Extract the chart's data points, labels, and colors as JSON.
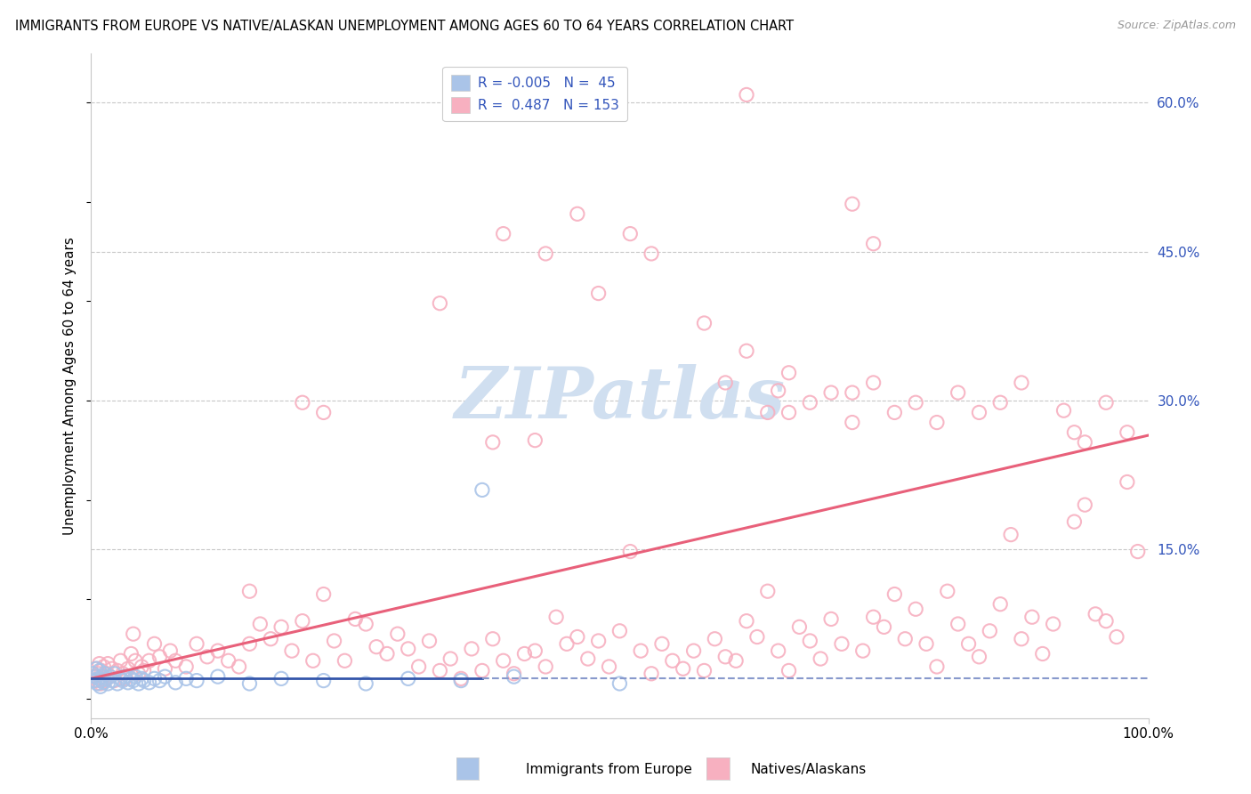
{
  "title": "IMMIGRANTS FROM EUROPE VS NATIVE/ALASKAN UNEMPLOYMENT AMONG AGES 60 TO 64 YEARS CORRELATION CHART",
  "source": "Source: ZipAtlas.com",
  "ylabel": "Unemployment Among Ages 60 to 64 years",
  "xlim": [
    0.0,
    1.0
  ],
  "ylim": [
    -0.02,
    0.65
  ],
  "xtick_labels": [
    "0.0%",
    "100.0%"
  ],
  "ytick_labels": [
    "15.0%",
    "30.0%",
    "45.0%",
    "60.0%"
  ],
  "ytick_values": [
    0.15,
    0.3,
    0.45,
    0.6
  ],
  "color_blue": "#aac4e8",
  "color_pink": "#f7b0c0",
  "line_color_blue_solid": "#3355aa",
  "line_color_blue_dashed": "#8899cc",
  "line_color_pink": "#e8607a",
  "text_color": "#3355bb",
  "watermark_color": "#d0dff0",
  "background_color": "#ffffff",
  "grid_color": "#c8c8c8",
  "blue_scatter": [
    [
      0.002,
      0.025
    ],
    [
      0.003,
      0.018
    ],
    [
      0.004,
      0.022
    ],
    [
      0.005,
      0.03
    ],
    [
      0.006,
      0.015
    ],
    [
      0.007,
      0.02
    ],
    [
      0.008,
      0.028
    ],
    [
      0.009,
      0.012
    ],
    [
      0.01,
      0.018
    ],
    [
      0.011,
      0.022
    ],
    [
      0.012,
      0.016
    ],
    [
      0.013,
      0.025
    ],
    [
      0.015,
      0.02
    ],
    [
      0.016,
      0.015
    ],
    [
      0.018,
      0.022
    ],
    [
      0.02,
      0.018
    ],
    [
      0.022,
      0.025
    ],
    [
      0.025,
      0.015
    ],
    [
      0.028,
      0.02
    ],
    [
      0.03,
      0.018
    ],
    [
      0.032,
      0.022
    ],
    [
      0.035,
      0.016
    ],
    [
      0.038,
      0.02
    ],
    [
      0.04,
      0.018
    ],
    [
      0.042,
      0.022
    ],
    [
      0.045,
      0.015
    ],
    [
      0.048,
      0.02
    ],
    [
      0.05,
      0.018
    ],
    [
      0.055,
      0.016
    ],
    [
      0.06,
      0.02
    ],
    [
      0.065,
      0.018
    ],
    [
      0.07,
      0.022
    ],
    [
      0.08,
      0.016
    ],
    [
      0.09,
      0.02
    ],
    [
      0.1,
      0.018
    ],
    [
      0.12,
      0.022
    ],
    [
      0.15,
      0.015
    ],
    [
      0.18,
      0.02
    ],
    [
      0.22,
      0.018
    ],
    [
      0.26,
      0.015
    ],
    [
      0.3,
      0.02
    ],
    [
      0.35,
      0.018
    ],
    [
      0.37,
      0.21
    ],
    [
      0.4,
      0.022
    ],
    [
      0.5,
      0.015
    ]
  ],
  "pink_scatter": [
    [
      0.003,
      0.022
    ],
    [
      0.005,
      0.03
    ],
    [
      0.006,
      0.018
    ],
    [
      0.007,
      0.025
    ],
    [
      0.008,
      0.035
    ],
    [
      0.009,
      0.015
    ],
    [
      0.01,
      0.028
    ],
    [
      0.011,
      0.02
    ],
    [
      0.012,
      0.032
    ],
    [
      0.013,
      0.018
    ],
    [
      0.015,
      0.025
    ],
    [
      0.016,
      0.035
    ],
    [
      0.018,
      0.022
    ],
    [
      0.02,
      0.03
    ],
    [
      0.022,
      0.018
    ],
    [
      0.025,
      0.028
    ],
    [
      0.028,
      0.038
    ],
    [
      0.03,
      0.025
    ],
    [
      0.032,
      0.02
    ],
    [
      0.035,
      0.03
    ],
    [
      0.038,
      0.045
    ],
    [
      0.04,
      0.065
    ],
    [
      0.042,
      0.038
    ],
    [
      0.045,
      0.025
    ],
    [
      0.048,
      0.032
    ],
    [
      0.05,
      0.028
    ],
    [
      0.055,
      0.038
    ],
    [
      0.06,
      0.055
    ],
    [
      0.065,
      0.042
    ],
    [
      0.07,
      0.03
    ],
    [
      0.075,
      0.048
    ],
    [
      0.08,
      0.038
    ],
    [
      0.09,
      0.032
    ],
    [
      0.1,
      0.055
    ],
    [
      0.11,
      0.042
    ],
    [
      0.12,
      0.048
    ],
    [
      0.13,
      0.038
    ],
    [
      0.14,
      0.032
    ],
    [
      0.15,
      0.055
    ],
    [
      0.16,
      0.075
    ],
    [
      0.17,
      0.06
    ],
    [
      0.18,
      0.072
    ],
    [
      0.19,
      0.048
    ],
    [
      0.2,
      0.078
    ],
    [
      0.21,
      0.038
    ],
    [
      0.22,
      0.105
    ],
    [
      0.23,
      0.058
    ],
    [
      0.24,
      0.038
    ],
    [
      0.25,
      0.08
    ],
    [
      0.26,
      0.075
    ],
    [
      0.27,
      0.052
    ],
    [
      0.28,
      0.045
    ],
    [
      0.29,
      0.065
    ],
    [
      0.3,
      0.05
    ],
    [
      0.31,
      0.032
    ],
    [
      0.32,
      0.058
    ],
    [
      0.33,
      0.028
    ],
    [
      0.34,
      0.04
    ],
    [
      0.35,
      0.02
    ],
    [
      0.36,
      0.05
    ],
    [
      0.37,
      0.028
    ],
    [
      0.38,
      0.06
    ],
    [
      0.39,
      0.038
    ],
    [
      0.4,
      0.025
    ],
    [
      0.41,
      0.045
    ],
    [
      0.42,
      0.048
    ],
    [
      0.43,
      0.032
    ],
    [
      0.44,
      0.082
    ],
    [
      0.45,
      0.055
    ],
    [
      0.46,
      0.062
    ],
    [
      0.47,
      0.04
    ],
    [
      0.48,
      0.058
    ],
    [
      0.49,
      0.032
    ],
    [
      0.5,
      0.068
    ],
    [
      0.51,
      0.148
    ],
    [
      0.52,
      0.048
    ],
    [
      0.53,
      0.025
    ],
    [
      0.54,
      0.055
    ],
    [
      0.55,
      0.038
    ],
    [
      0.56,
      0.03
    ],
    [
      0.57,
      0.048
    ],
    [
      0.58,
      0.028
    ],
    [
      0.59,
      0.06
    ],
    [
      0.6,
      0.042
    ],
    [
      0.61,
      0.038
    ],
    [
      0.62,
      0.078
    ],
    [
      0.63,
      0.062
    ],
    [
      0.64,
      0.108
    ],
    [
      0.65,
      0.048
    ],
    [
      0.66,
      0.028
    ],
    [
      0.67,
      0.072
    ],
    [
      0.68,
      0.058
    ],
    [
      0.69,
      0.04
    ],
    [
      0.7,
      0.08
    ],
    [
      0.71,
      0.055
    ],
    [
      0.72,
      0.308
    ],
    [
      0.73,
      0.048
    ],
    [
      0.74,
      0.082
    ],
    [
      0.75,
      0.072
    ],
    [
      0.76,
      0.105
    ],
    [
      0.77,
      0.06
    ],
    [
      0.78,
      0.09
    ],
    [
      0.79,
      0.055
    ],
    [
      0.8,
      0.032
    ],
    [
      0.81,
      0.108
    ],
    [
      0.82,
      0.075
    ],
    [
      0.83,
      0.055
    ],
    [
      0.84,
      0.042
    ],
    [
      0.85,
      0.068
    ],
    [
      0.86,
      0.095
    ],
    [
      0.87,
      0.165
    ],
    [
      0.88,
      0.06
    ],
    [
      0.89,
      0.082
    ],
    [
      0.9,
      0.045
    ],
    [
      0.91,
      0.075
    ],
    [
      0.92,
      0.29
    ],
    [
      0.93,
      0.178
    ],
    [
      0.94,
      0.195
    ],
    [
      0.95,
      0.085
    ],
    [
      0.96,
      0.078
    ],
    [
      0.97,
      0.062
    ],
    [
      0.98,
      0.218
    ],
    [
      0.99,
      0.148
    ],
    [
      0.33,
      0.398
    ],
    [
      0.39,
      0.468
    ],
    [
      0.43,
      0.448
    ],
    [
      0.46,
      0.488
    ],
    [
      0.48,
      0.408
    ],
    [
      0.51,
      0.468
    ],
    [
      0.53,
      0.448
    ],
    [
      0.62,
      0.35
    ],
    [
      0.65,
      0.31
    ],
    [
      0.66,
      0.288
    ],
    [
      0.68,
      0.298
    ],
    [
      0.7,
      0.308
    ],
    [
      0.72,
      0.278
    ],
    [
      0.74,
      0.318
    ],
    [
      0.76,
      0.288
    ],
    [
      0.78,
      0.298
    ],
    [
      0.8,
      0.278
    ],
    [
      0.82,
      0.308
    ],
    [
      0.84,
      0.288
    ],
    [
      0.86,
      0.298
    ],
    [
      0.88,
      0.318
    ],
    [
      0.58,
      0.378
    ],
    [
      0.6,
      0.318
    ],
    [
      0.62,
      0.608
    ],
    [
      0.64,
      0.288
    ],
    [
      0.66,
      0.328
    ],
    [
      0.72,
      0.498
    ],
    [
      0.74,
      0.458
    ],
    [
      0.93,
      0.268
    ],
    [
      0.94,
      0.258
    ],
    [
      0.96,
      0.298
    ],
    [
      0.98,
      0.268
    ],
    [
      0.15,
      0.108
    ],
    [
      0.2,
      0.298
    ],
    [
      0.22,
      0.288
    ],
    [
      0.38,
      0.258
    ],
    [
      0.42,
      0.26
    ]
  ],
  "pink_trend": [
    0.0,
    0.3
  ],
  "blue_trend_y": 0.02
}
